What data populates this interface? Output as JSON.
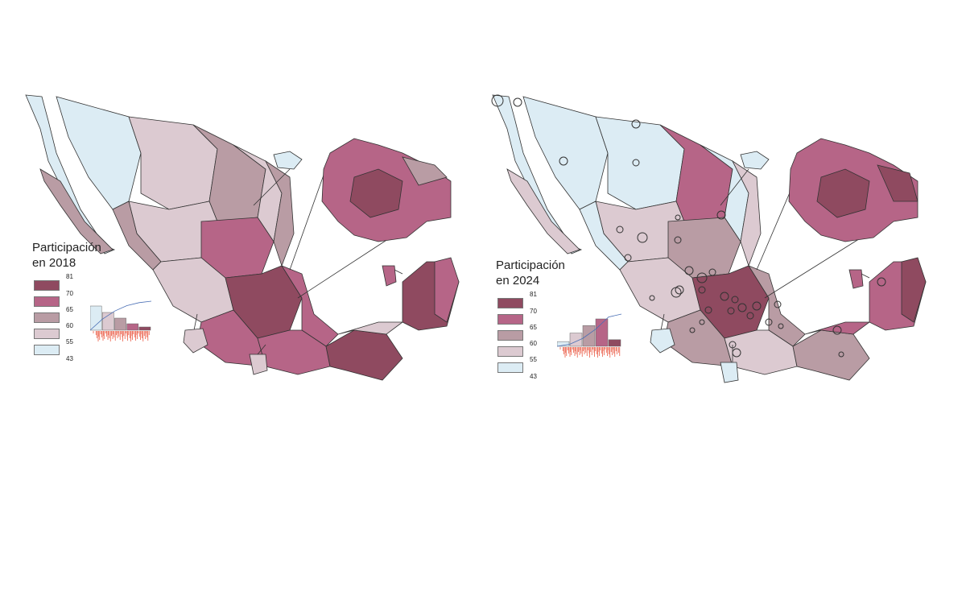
{
  "maps": [
    {
      "id": "2018",
      "legend_title_line1": "Participación",
      "legend_title_line2": "en 2018",
      "legend_breaks": [
        "81",
        "70",
        "65",
        "60",
        "55",
        "43"
      ],
      "show_circles": false
    },
    {
      "id": "2024",
      "legend_title_line1": "Participación",
      "legend_title_line2": "en 2024",
      "legend_breaks": [
        "81",
        "70",
        "65",
        "60",
        "55",
        "43"
      ],
      "show_circles": true
    }
  ],
  "colors": {
    "c1": "#8f4a60",
    "c2": "#b66587",
    "c3": "#b99ca4",
    "c4": "#dccad1",
    "c5": "#dcecf4",
    "border": "#333333",
    "hist_red": "#e8452c",
    "cdf_line": "#4a6fb5"
  },
  "class_counts_2018": [
    8,
    16,
    30,
    44,
    60
  ],
  "class_counts_2024": [
    14,
    58,
    44,
    28,
    10
  ]
}
